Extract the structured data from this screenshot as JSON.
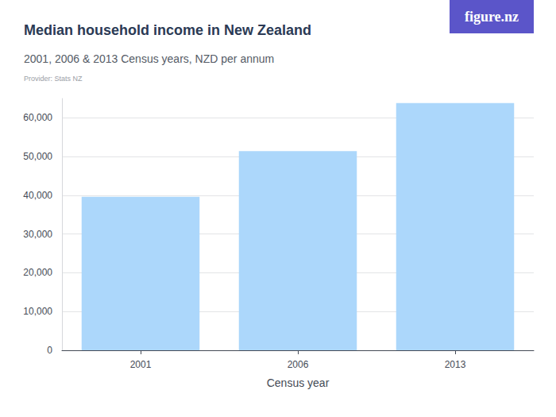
{
  "chart_data": {
    "type": "bar",
    "title": "Median household income in New Zealand",
    "subtitle": "2001, 2006 & 2013 Census years, NZD per annum",
    "source": "Provider: Stats NZ",
    "logo": "figure.nz",
    "x_label": "Census year",
    "categories": [
      "2001",
      "2006",
      "2013"
    ],
    "values": [
      39600,
      51400,
      63800
    ],
    "color": "#acd7fb",
    "ylim": [
      0,
      65000
    ],
    "yticks": [
      0,
      {
        "value": 10000,
        "label": "10,000"
      },
      {
        "value": 20000,
        "label": "20,000"
      },
      {
        "value": 30000,
        "label": "30,000"
      },
      {
        "value": 40000,
        "label": "40,000"
      },
      {
        "value": 50000,
        "label": "50,000"
      },
      {
        "value": 60000,
        "label": "60,000"
      }
    ],
    "grid": true,
    "data_labels": false
  }
}
